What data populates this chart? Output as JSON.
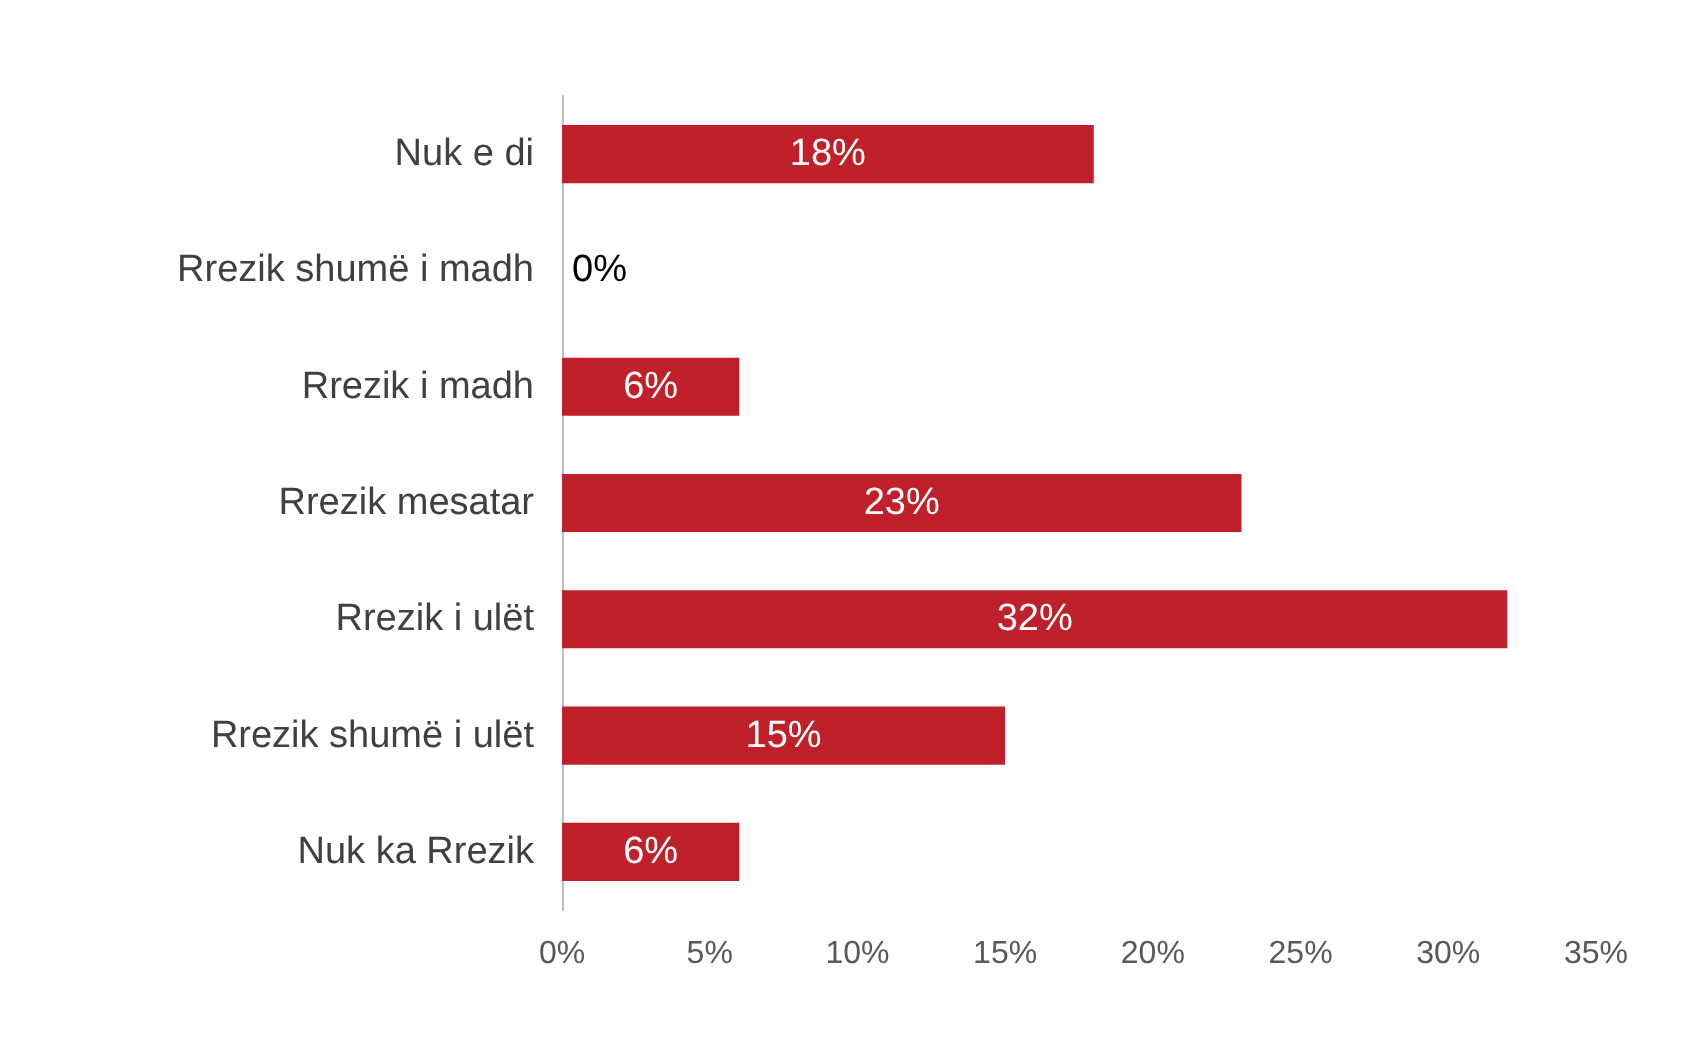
{
  "chart_data": {
    "type": "bar",
    "orientation": "horizontal",
    "categories": [
      "Nuk e di",
      "Rrezik shumë i madh",
      "Rrezik i madh",
      "Rrezik mesatar",
      "Rrezik i ulët",
      "Rrezik shumë i ulët",
      "Nuk ka Rrezik"
    ],
    "values": [
      18,
      0,
      6,
      23,
      32,
      15,
      6
    ],
    "value_labels": [
      "18%",
      "0%",
      "6%",
      "23%",
      "32%",
      "15%",
      "6%"
    ],
    "color": "#c0202a",
    "xlim": [
      0,
      35
    ],
    "xticks": [
      {
        "value": 0,
        "label": "0%"
      },
      {
        "value": 5,
        "label": "5%"
      },
      {
        "value": 10,
        "label": "10%"
      },
      {
        "value": 15,
        "label": "15%"
      },
      {
        "value": 20,
        "label": "20%"
      },
      {
        "value": 25,
        "label": "25%"
      },
      {
        "value": 30,
        "label": "30%"
      },
      {
        "value": 35,
        "label": "35%"
      }
    ],
    "grid": false
  }
}
